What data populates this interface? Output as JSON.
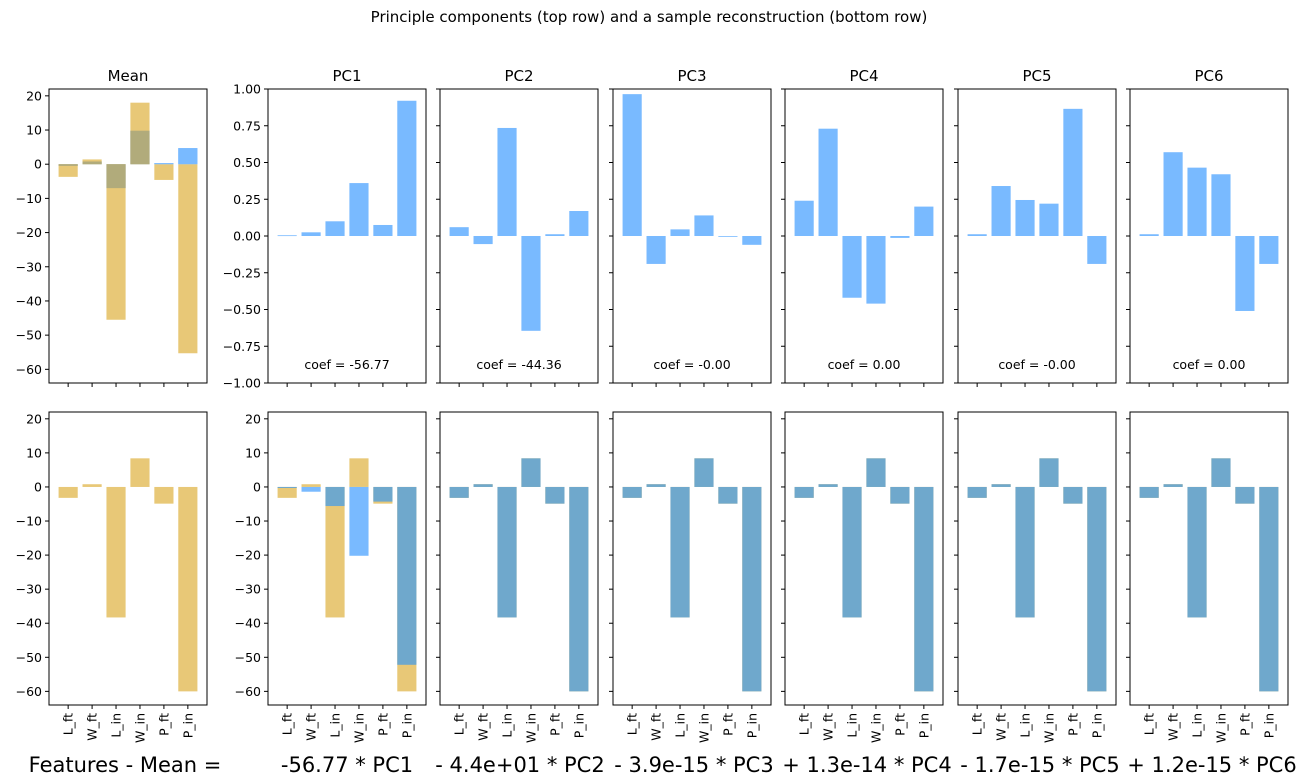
{
  "suptitle": "Principle components (top row) and a sample reconstruction (bottom row)",
  "colors": {
    "component": "#79baff",
    "target": "#e8c877",
    "mean_overlap": "#b1ab7b",
    "reconstruction": "#6fa8cc"
  },
  "chart_data": {
    "type": "bar",
    "title": "Principle components (top row) and a sample reconstruction (bottom row)",
    "categories": [
      "L_ft",
      "W_ft",
      "L_in",
      "W_in",
      "P_ft",
      "P_in"
    ],
    "top_row": [
      {
        "title": "Mean",
        "ylim": [
          -64,
          22
        ],
        "yticks": [
          "20",
          "10",
          "0",
          "−10",
          "−20",
          "−30",
          "−40",
          "−50",
          "−60"
        ],
        "ytick_values": [
          20,
          10,
          0,
          -10,
          -20,
          -30,
          -40,
          -50,
          -60
        ],
        "series": [
          {
            "name": "mean",
            "values": [
              -0.5,
              0.8,
              -7.0,
              9.8,
              0.3,
              4.7
            ]
          },
          {
            "name": "features",
            "values": [
              -3.7,
              1.4,
              -45.5,
              18.0,
              -4.6,
              -55.3
            ]
          }
        ]
      },
      {
        "title": "PC1",
        "coef_label": "coef = -56.77",
        "ylim": [
          -1,
          1
        ],
        "yticks": [
          "1.00",
          "0.75",
          "0.50",
          "0.25",
          "0.00",
          "−0.25",
          "−0.50",
          "−0.75",
          "−1.00"
        ],
        "ytick_values": [
          1,
          0.75,
          0.5,
          0.25,
          0,
          -0.25,
          -0.5,
          -0.75,
          -1
        ],
        "values": [
          0.005,
          0.025,
          0.1,
          0.36,
          0.075,
          0.92
        ]
      },
      {
        "title": "PC2",
        "coef_label": "coef = -44.36",
        "ylim": [
          -1,
          1
        ],
        "values": [
          0.06,
          -0.055,
          0.735,
          -0.645,
          0.012,
          0.17
        ]
      },
      {
        "title": "PC3",
        "coef_label": "coef = -0.00",
        "ylim": [
          -1,
          1
        ],
        "values": [
          0.965,
          -0.19,
          0.045,
          0.14,
          0.0,
          -0.06
        ]
      },
      {
        "title": "PC4",
        "coef_label": "coef = 0.00",
        "ylim": [
          -1,
          1
        ],
        "values": [
          0.24,
          0.73,
          -0.42,
          -0.46,
          -0.013,
          0.2
        ]
      },
      {
        "title": "PC5",
        "coef_label": "coef = -0.00",
        "ylim": [
          -1,
          1
        ],
        "values": [
          0.012,
          0.34,
          0.245,
          0.22,
          0.865,
          -0.19
        ]
      },
      {
        "title": "PC6",
        "coef_label": "coef = 0.00",
        "ylim": [
          -1,
          1
        ],
        "values": [
          0.012,
          0.57,
          0.465,
          0.42,
          -0.51,
          -0.19
        ]
      }
    ],
    "bottom_row": {
      "ylim": [
        -64,
        22
      ],
      "yticks": [
        "20",
        "10",
        "0",
        "−10",
        "−20",
        "−30",
        "−40",
        "−50",
        "−60"
      ],
      "ytick_values": [
        20,
        10,
        0,
        -10,
        -20,
        -30,
        -40,
        -50,
        -60
      ],
      "target_values": [
        -3.2,
        0.8,
        -38.3,
        8.4,
        -4.9,
        -60.0
      ],
      "reconstructions": [
        [
          -0.3,
          -1.4,
          -5.6,
          -20.2,
          -4.3,
          -52.2
        ],
        [
          -3.2,
          0.8,
          -38.3,
          8.4,
          -4.9,
          -60.0
        ],
        [
          -3.2,
          0.8,
          -38.3,
          8.4,
          -4.9,
          -60.0
        ],
        [
          -3.2,
          0.8,
          -38.3,
          8.4,
          -4.9,
          -60.0
        ],
        [
          -3.2,
          0.8,
          -38.3,
          8.4,
          -4.9,
          -60.0
        ],
        [
          -3.2,
          0.8,
          -38.3,
          8.4,
          -4.9,
          -60.0
        ]
      ],
      "equation_terms": [
        "Features - Mean =",
        "-56.77 * PC1",
        "- 4.4e+01 * PC2",
        "- 3.9e-15 * PC3",
        "+ 1.3e-14 * PC4",
        "- 1.7e-15 * PC5",
        "+ 1.2e-15 * PC6"
      ]
    }
  }
}
